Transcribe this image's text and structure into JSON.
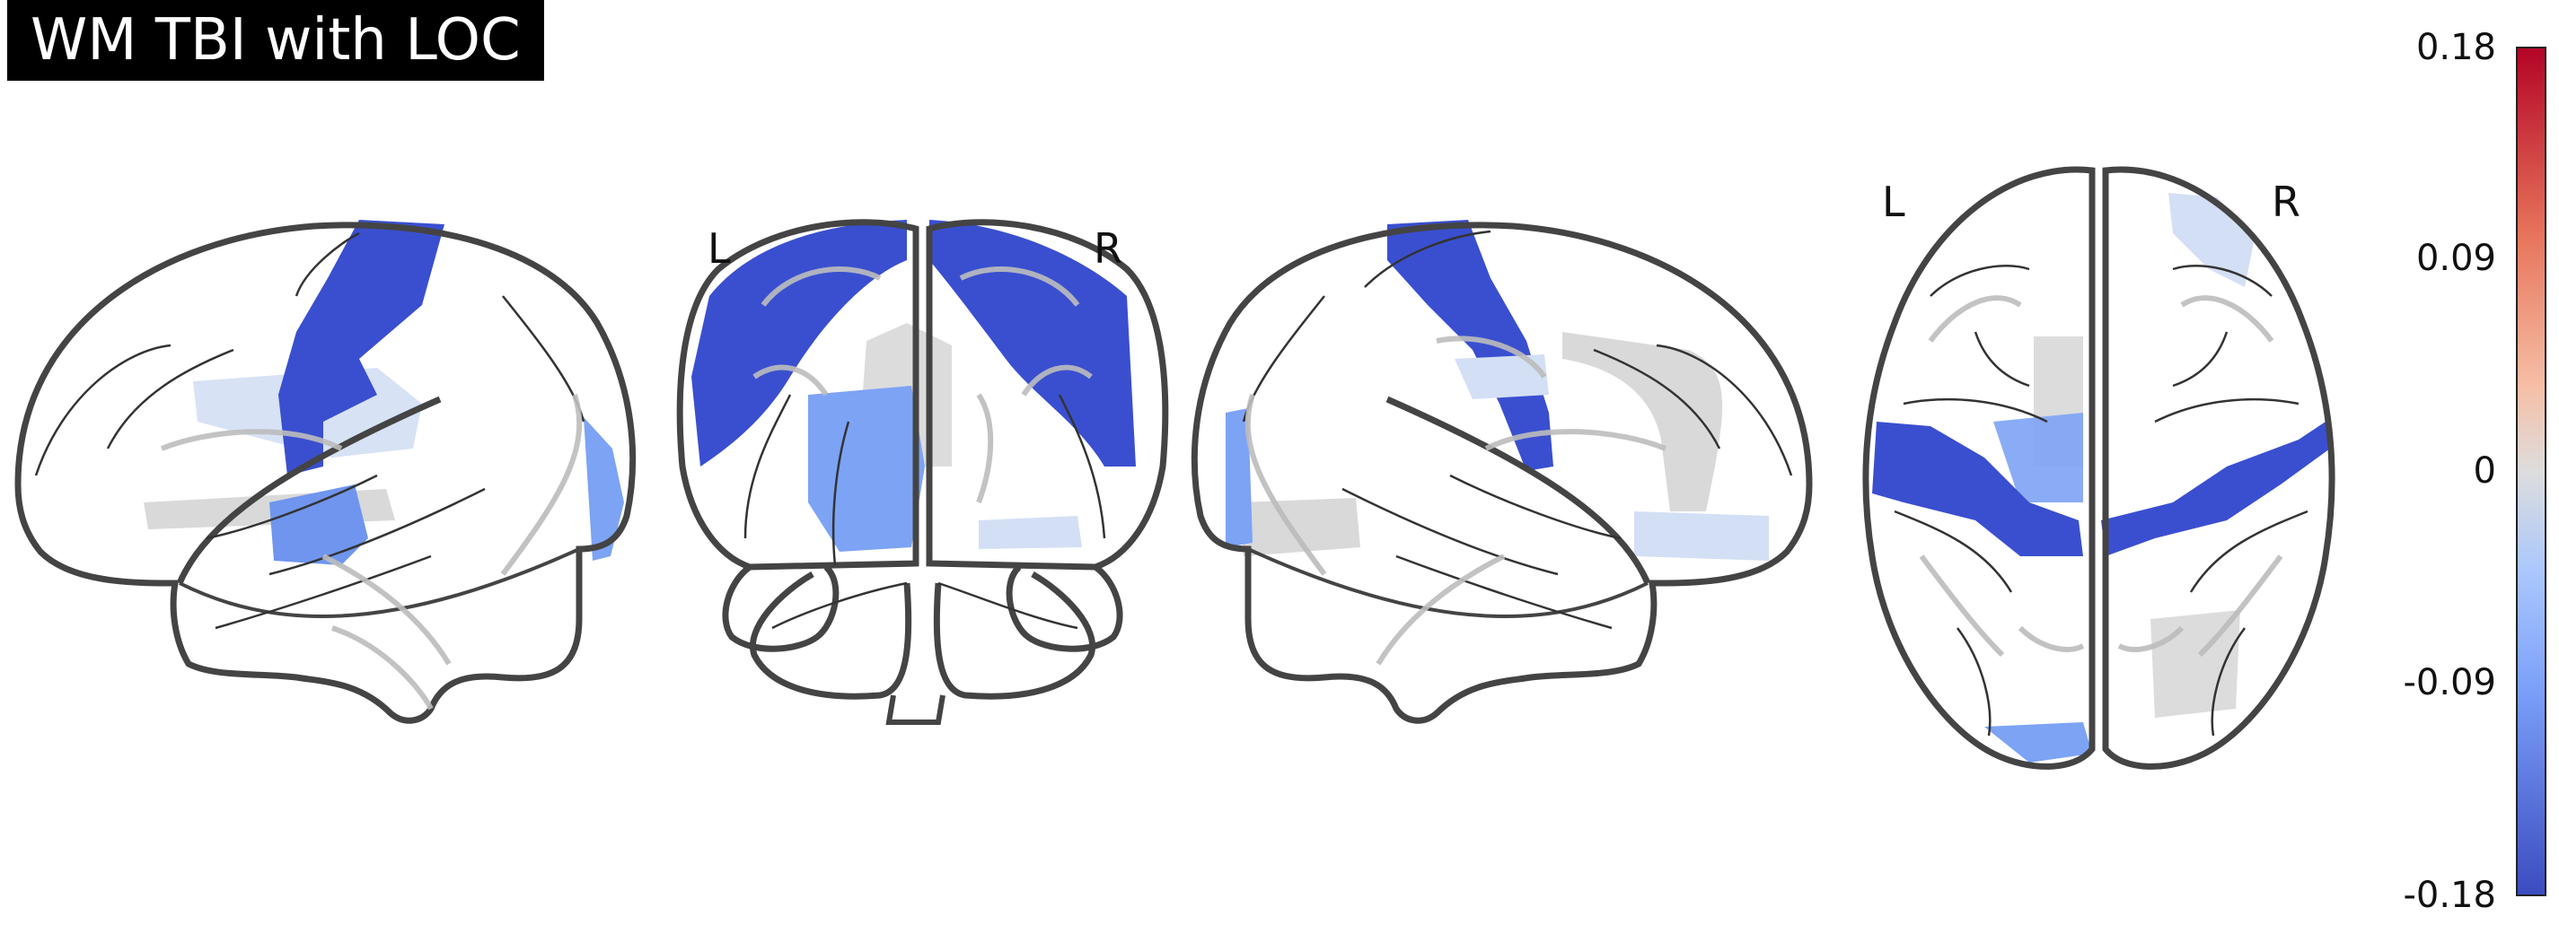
{
  "title": "WM TBI with LOC",
  "orientation_labels": {
    "coronal_left": "L",
    "coronal_right": "R",
    "axial_left": "L",
    "axial_right": "R"
  },
  "colorbar": {
    "ticks": [
      "0.18",
      "0.09",
      "0",
      "-0.09",
      "-0.18"
    ],
    "vmin": -0.18,
    "vmax": 0.18,
    "colormap": "coolwarm"
  },
  "colors": {
    "strong_neg": "#3a4fcf",
    "mid_neg": "#7da3f5",
    "light_neg": "#c6d4f2",
    "neutral": "#d9d9d9",
    "outline": "#444444",
    "title_bg": "#000000"
  }
}
